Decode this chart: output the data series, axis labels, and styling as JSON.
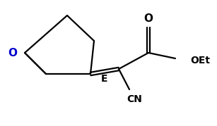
{
  "bg_color": "#ffffff",
  "line_color": "#000000",
  "line_width": 1.6,
  "text_color": "#000000",
  "label_O_epox": "O",
  "label_E": "E",
  "label_CN": "CN",
  "label_OEt": "OEt",
  "label_O_carbonyl": "O",
  "font_size": 9,
  "figsize": [
    3.07,
    1.79
  ],
  "dpi": 100,
  "O_color": "#0000cc"
}
